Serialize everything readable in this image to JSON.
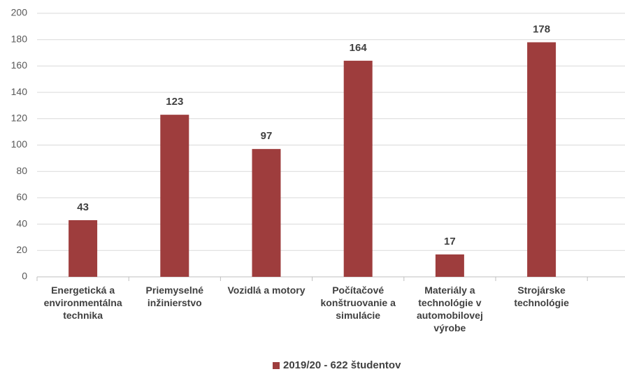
{
  "chart_data": {
    "type": "bar",
    "categories": [
      "Energetická a environmentálna technika",
      "Priemyselné inžinierstvo",
      "Vozidlá a motory",
      "Počítačové konštruovanie a simulácie",
      "Materiály a technológie v automobilovej výrobe",
      "Strojárske technológie"
    ],
    "series": [
      {
        "name": "2019/20 - 622 študentov",
        "color": "#9e3d3d",
        "values": [
          43,
          123,
          97,
          164,
          17,
          178
        ]
      }
    ],
    "ylim": [
      0,
      200
    ],
    "yticks": [
      0,
      20,
      40,
      60,
      80,
      100,
      120,
      140,
      160,
      180,
      200
    ],
    "grid": true,
    "legend": "bottom"
  }
}
